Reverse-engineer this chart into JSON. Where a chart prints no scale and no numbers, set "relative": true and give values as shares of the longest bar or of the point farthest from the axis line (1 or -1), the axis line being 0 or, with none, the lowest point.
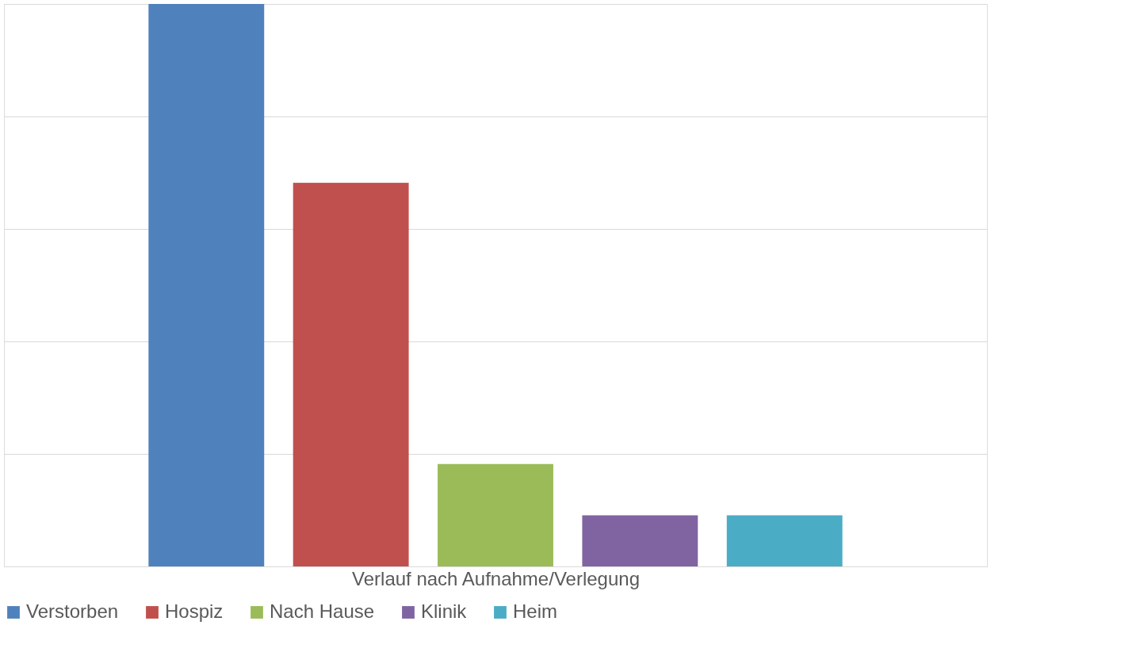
{
  "chart_data": {
    "type": "bar",
    "relative": true,
    "xlabel": "Verlauf nach Aufnahme/Verlegung",
    "categories": [
      null
    ],
    "grid": "y",
    "legend": "bottom left",
    "series": [
      {
        "name": "Verstorben",
        "color": "#4f81bd",
        "values": [
          1
        ]
      },
      {
        "name": "Hospiz",
        "color": "#c0504d",
        "values": [
          0.682
        ]
      },
      {
        "name": "Nach Hause",
        "color": "#9bbb59",
        "values": [
          0.182
        ]
      },
      {
        "name": "Klinik",
        "color": "#8064a2",
        "values": [
          0.091
        ]
      },
      {
        "name": "Heim",
        "color": "#4bacc6",
        "values": [
          0.091
        ]
      }
    ]
  }
}
